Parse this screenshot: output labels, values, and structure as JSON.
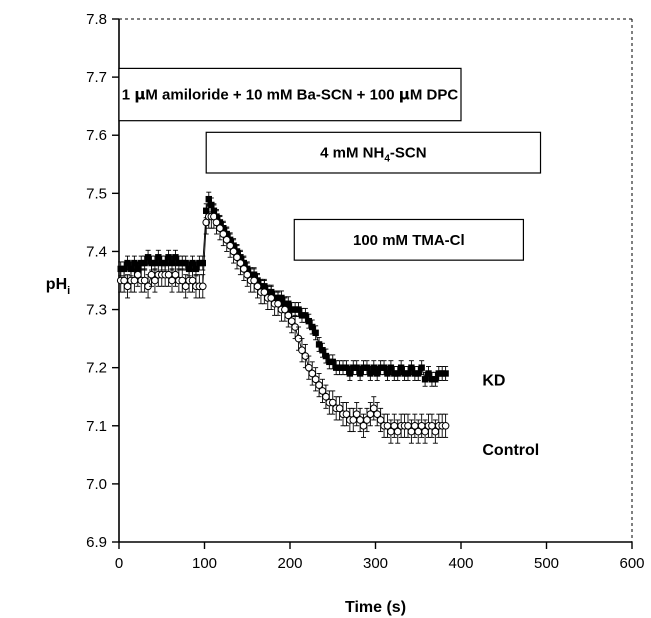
{
  "chart_data": {
    "type": "scatter",
    "title": "",
    "xlabel": "Time (s)",
    "ylabel": {
      "main": "pH",
      "sub": "i"
    },
    "xlim": [
      0,
      600
    ],
    "ylim": [
      6.9,
      7.8
    ],
    "xticks": [
      "0",
      "100",
      "200",
      "300",
      "400",
      "500",
      "600"
    ],
    "yticks": [
      "6.9",
      "7.0",
      "7.1",
      "7.2",
      "7.3",
      "7.4",
      "7.5",
      "7.6",
      "7.7",
      "7.8"
    ],
    "grid": false,
    "treatments": [
      {
        "parts": [
          [
            "1 ",
            ""
          ],
          [
            "μ",
            "greek"
          ],
          [
            "M amiloride + 10 mM Ba-SCN + 100 ",
            ""
          ],
          [
            "μ",
            "greek"
          ],
          [
            "M DPC",
            ""
          ]
        ],
        "x_start": 0,
        "x_end": 400,
        "y_top": 7.715,
        "y_bottom": 7.625
      },
      {
        "parts": [
          [
            "4 mM NH",
            ""
          ],
          [
            "4",
            "sub"
          ],
          [
            "-SCN",
            ""
          ]
        ],
        "x_start": 102,
        "x_end": 493,
        "y_top": 7.605,
        "y_bottom": 7.535
      },
      {
        "parts": [
          [
            "100 mM TMA-Cl",
            ""
          ]
        ],
        "x_start": 205,
        "x_end": 473,
        "y_top": 7.455,
        "y_bottom": 7.385
      }
    ],
    "series": [
      {
        "name": "KD",
        "marker": "filled-square",
        "points": [
          [
            2,
            7.37
          ],
          [
            6,
            7.37
          ],
          [
            10,
            7.38
          ],
          [
            14,
            7.37
          ],
          [
            18,
            7.38
          ],
          [
            22,
            7.37
          ],
          [
            26,
            7.38
          ],
          [
            30,
            7.38
          ],
          [
            34,
            7.39
          ],
          [
            38,
            7.38
          ],
          [
            42,
            7.38
          ],
          [
            46,
            7.39
          ],
          [
            50,
            7.38
          ],
          [
            54,
            7.38
          ],
          [
            58,
            7.39
          ],
          [
            62,
            7.38
          ],
          [
            66,
            7.39
          ],
          [
            70,
            7.38
          ],
          [
            74,
            7.38
          ],
          [
            78,
            7.38
          ],
          [
            82,
            7.37
          ],
          [
            86,
            7.38
          ],
          [
            90,
            7.37
          ],
          [
            94,
            7.38
          ],
          [
            98,
            7.38
          ],
          [
            102,
            7.47
          ],
          [
            105,
            7.49
          ],
          [
            108,
            7.48
          ],
          [
            111,
            7.47
          ],
          [
            114,
            7.46
          ],
          [
            118,
            7.45
          ],
          [
            122,
            7.44
          ],
          [
            126,
            7.43
          ],
          [
            130,
            7.42
          ],
          [
            134,
            7.41
          ],
          [
            138,
            7.4
          ],
          [
            142,
            7.39
          ],
          [
            146,
            7.38
          ],
          [
            150,
            7.37
          ],
          [
            154,
            7.36
          ],
          [
            158,
            7.36
          ],
          [
            162,
            7.35
          ],
          [
            166,
            7.34
          ],
          [
            170,
            7.34
          ],
          [
            174,
            7.33
          ],
          [
            178,
            7.33
          ],
          [
            182,
            7.32
          ],
          [
            186,
            7.32
          ],
          [
            190,
            7.32
          ],
          [
            194,
            7.31
          ],
          [
            198,
            7.31
          ],
          [
            202,
            7.3
          ],
          [
            206,
            7.3
          ],
          [
            210,
            7.3
          ],
          [
            214,
            7.29
          ],
          [
            218,
            7.29
          ],
          [
            222,
            7.28
          ],
          [
            226,
            7.27
          ],
          [
            230,
            7.26
          ],
          [
            234,
            7.24
          ],
          [
            238,
            7.23
          ],
          [
            242,
            7.22
          ],
          [
            246,
            7.21
          ],
          [
            250,
            7.21
          ],
          [
            254,
            7.2
          ],
          [
            258,
            7.2
          ],
          [
            262,
            7.2
          ],
          [
            266,
            7.2
          ],
          [
            270,
            7.19
          ],
          [
            274,
            7.2
          ],
          [
            278,
            7.2
          ],
          [
            282,
            7.19
          ],
          [
            286,
            7.2
          ],
          [
            290,
            7.2
          ],
          [
            294,
            7.19
          ],
          [
            298,
            7.2
          ],
          [
            302,
            7.19
          ],
          [
            306,
            7.2
          ],
          [
            310,
            7.2
          ],
          [
            314,
            7.19
          ],
          [
            318,
            7.2
          ],
          [
            322,
            7.19
          ],
          [
            326,
            7.19
          ],
          [
            330,
            7.2
          ],
          [
            334,
            7.19
          ],
          [
            338,
            7.19
          ],
          [
            342,
            7.2
          ],
          [
            346,
            7.19
          ],
          [
            350,
            7.19
          ],
          [
            354,
            7.2
          ],
          [
            358,
            7.18
          ],
          [
            362,
            7.19
          ],
          [
            366,
            7.18
          ],
          [
            370,
            7.18
          ],
          [
            374,
            7.19
          ],
          [
            378,
            7.19
          ],
          [
            382,
            7.19
          ]
        ],
        "error": 0.012
      },
      {
        "name": "Control",
        "marker": "open-circle",
        "points": [
          [
            2,
            7.35
          ],
          [
            6,
            7.35
          ],
          [
            10,
            7.34
          ],
          [
            14,
            7.35
          ],
          [
            18,
            7.35
          ],
          [
            22,
            7.36
          ],
          [
            26,
            7.35
          ],
          [
            30,
            7.35
          ],
          [
            34,
            7.34
          ],
          [
            38,
            7.36
          ],
          [
            42,
            7.35
          ],
          [
            46,
            7.36
          ],
          [
            50,
            7.36
          ],
          [
            54,
            7.36
          ],
          [
            58,
            7.36
          ],
          [
            62,
            7.35
          ],
          [
            66,
            7.36
          ],
          [
            70,
            7.35
          ],
          [
            74,
            7.35
          ],
          [
            78,
            7.34
          ],
          [
            82,
            7.35
          ],
          [
            86,
            7.35
          ],
          [
            90,
            7.34
          ],
          [
            94,
            7.34
          ],
          [
            98,
            7.34
          ],
          [
            102,
            7.45
          ],
          [
            105,
            7.46
          ],
          [
            108,
            7.46
          ],
          [
            111,
            7.46
          ],
          [
            114,
            7.45
          ],
          [
            118,
            7.44
          ],
          [
            122,
            7.43
          ],
          [
            126,
            7.42
          ],
          [
            130,
            7.41
          ],
          [
            134,
            7.4
          ],
          [
            138,
            7.39
          ],
          [
            142,
            7.38
          ],
          [
            146,
            7.37
          ],
          [
            150,
            7.36
          ],
          [
            154,
            7.35
          ],
          [
            158,
            7.35
          ],
          [
            162,
            7.34
          ],
          [
            166,
            7.33
          ],
          [
            170,
            7.33
          ],
          [
            174,
            7.32
          ],
          [
            178,
            7.32
          ],
          [
            182,
            7.31
          ],
          [
            186,
            7.31
          ],
          [
            190,
            7.3
          ],
          [
            194,
            7.3
          ],
          [
            198,
            7.29
          ],
          [
            202,
            7.28
          ],
          [
            206,
            7.27
          ],
          [
            210,
            7.25
          ],
          [
            214,
            7.23
          ],
          [
            218,
            7.22
          ],
          [
            222,
            7.2
          ],
          [
            226,
            7.19
          ],
          [
            230,
            7.18
          ],
          [
            234,
            7.17
          ],
          [
            238,
            7.16
          ],
          [
            242,
            7.15
          ],
          [
            246,
            7.14
          ],
          [
            250,
            7.14
          ],
          [
            254,
            7.13
          ],
          [
            258,
            7.13
          ],
          [
            262,
            7.12
          ],
          [
            266,
            7.12
          ],
          [
            270,
            7.11
          ],
          [
            274,
            7.11
          ],
          [
            278,
            7.12
          ],
          [
            282,
            7.11
          ],
          [
            286,
            7.1
          ],
          [
            290,
            7.11
          ],
          [
            294,
            7.12
          ],
          [
            298,
            7.13
          ],
          [
            302,
            7.12
          ],
          [
            306,
            7.11
          ],
          [
            310,
            7.1
          ],
          [
            314,
            7.1
          ],
          [
            318,
            7.09
          ],
          [
            322,
            7.1
          ],
          [
            326,
            7.09
          ],
          [
            330,
            7.1
          ],
          [
            334,
            7.1
          ],
          [
            338,
            7.1
          ],
          [
            342,
            7.09
          ],
          [
            346,
            7.1
          ],
          [
            350,
            7.09
          ],
          [
            354,
            7.1
          ],
          [
            358,
            7.09
          ],
          [
            362,
            7.1
          ],
          [
            366,
            7.1
          ],
          [
            370,
            7.09
          ],
          [
            374,
            7.1
          ],
          [
            378,
            7.1
          ],
          [
            382,
            7.1
          ]
        ],
        "error": 0.02
      }
    ],
    "series_labels": [
      {
        "text": "KD",
        "x": 425,
        "y": 7.18
      },
      {
        "text": "Control",
        "x": 425,
        "y": 7.06
      }
    ]
  }
}
